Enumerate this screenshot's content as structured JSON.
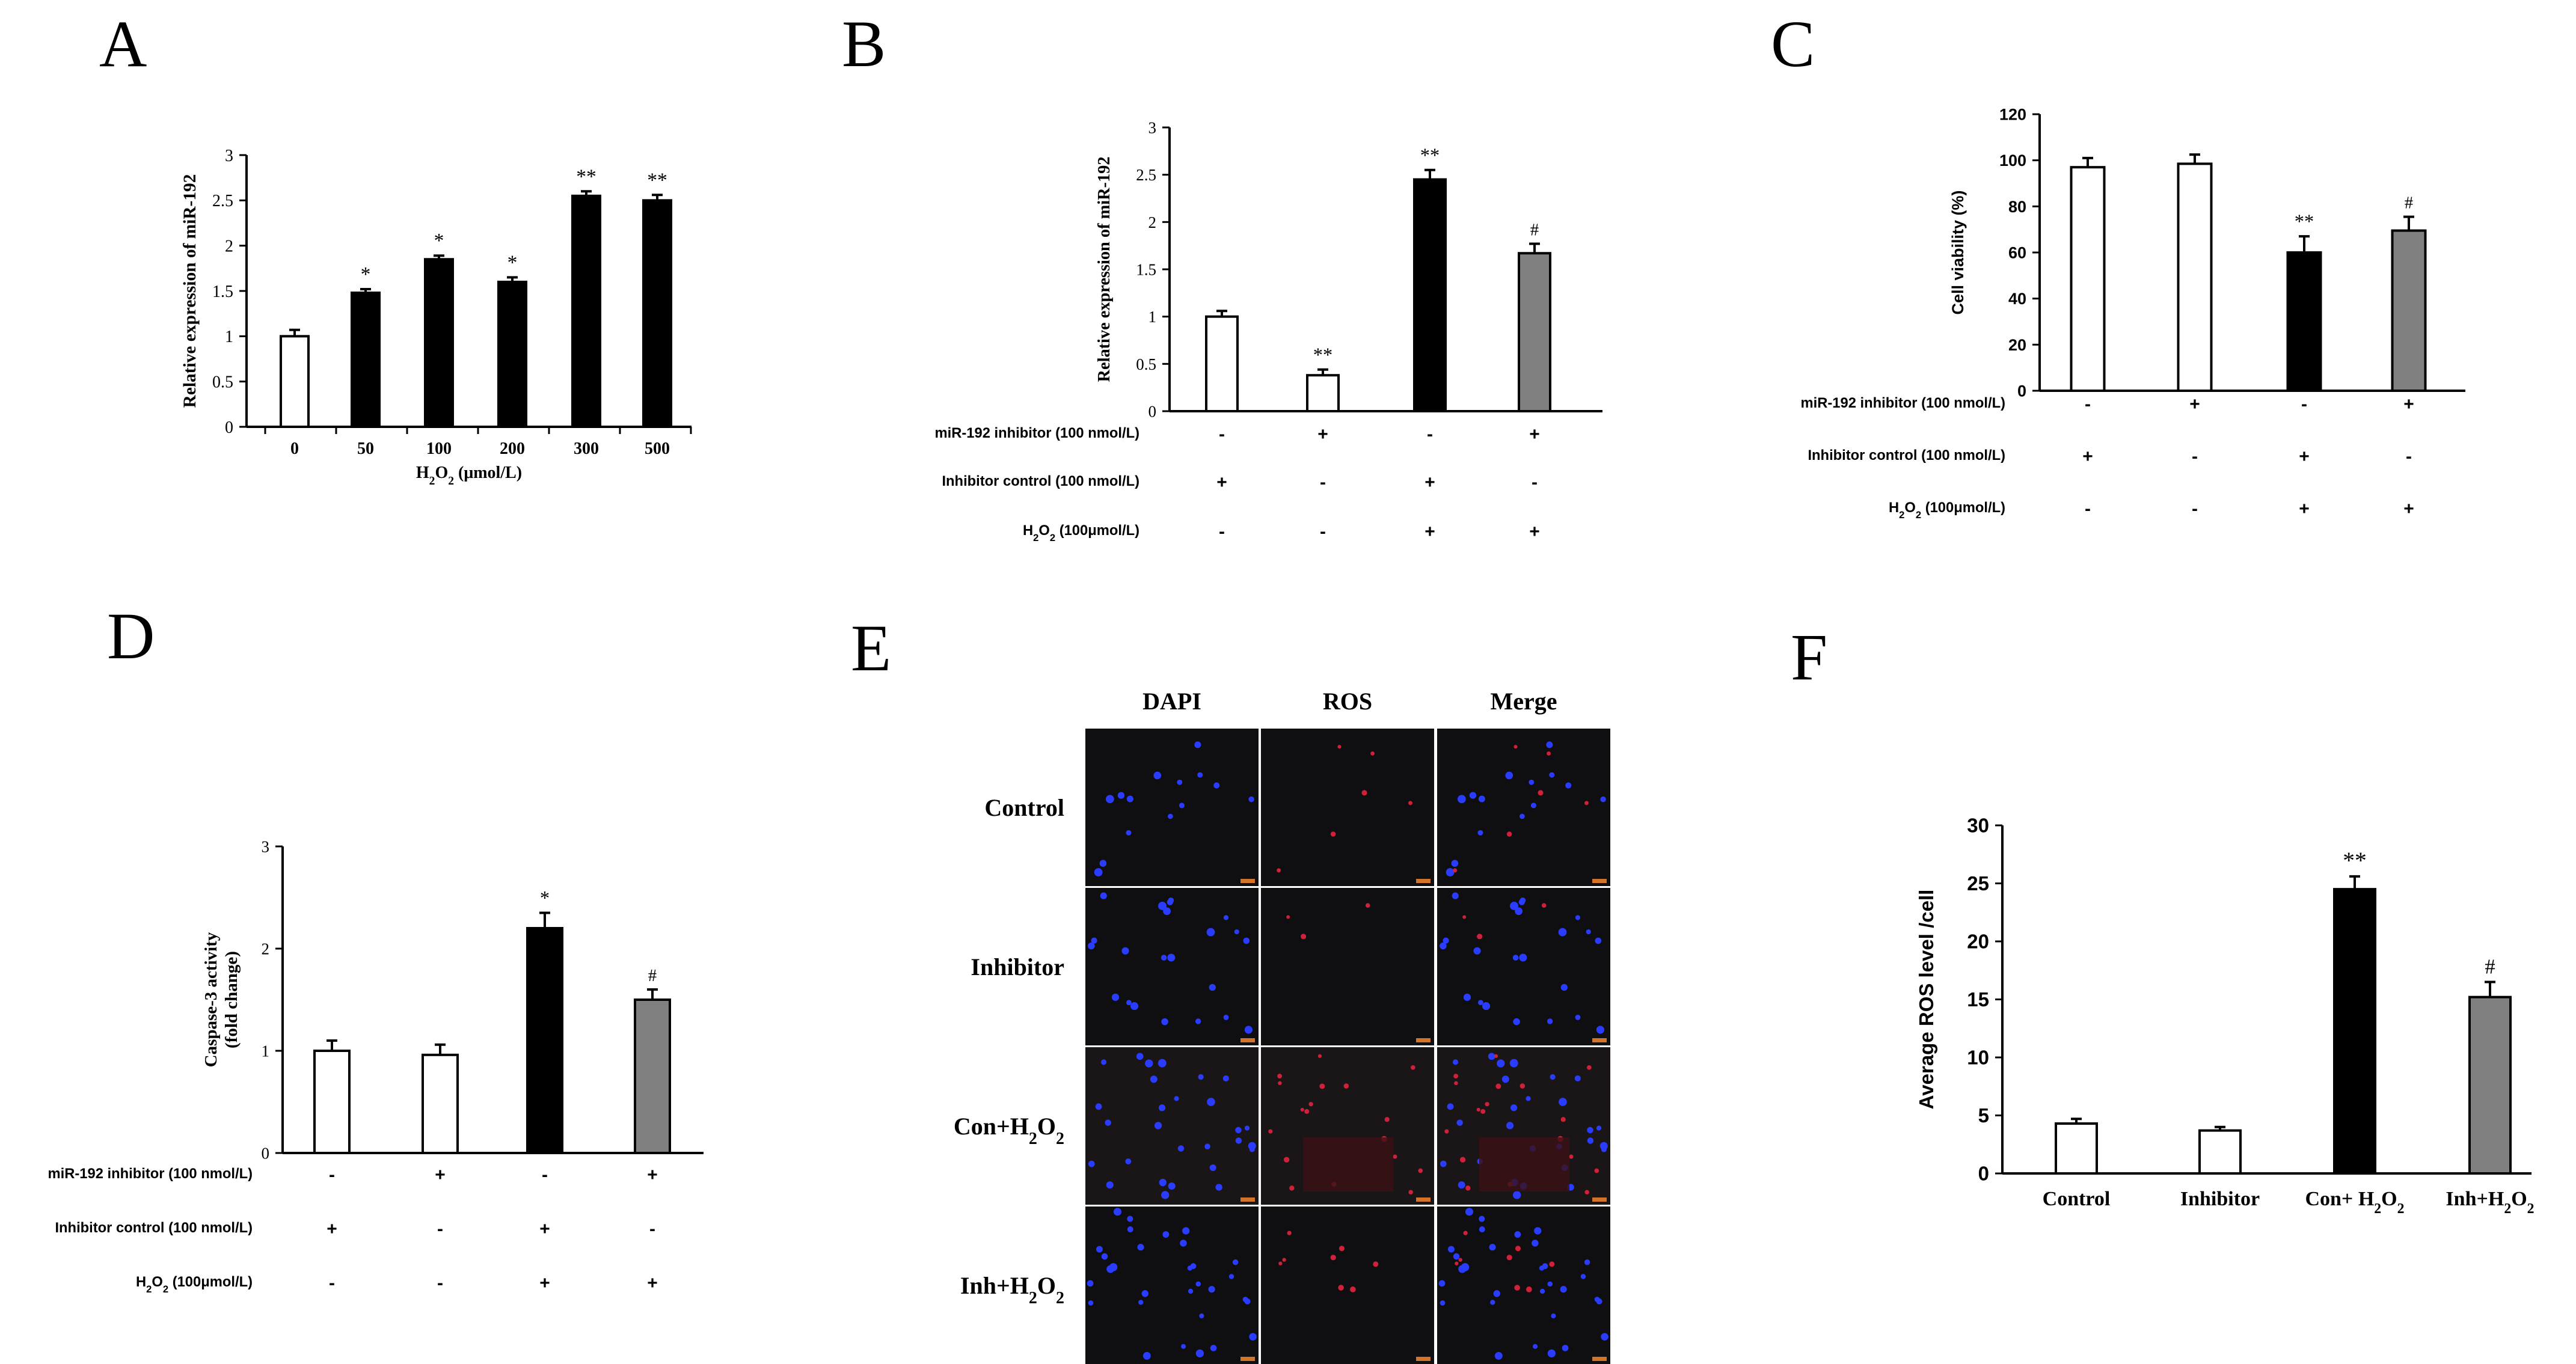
{
  "figure": {
    "panels": [
      {
        "id": "A",
        "letter": "A"
      },
      {
        "id": "B",
        "letter": "B"
      },
      {
        "id": "C",
        "letter": "C"
      },
      {
        "id": "D",
        "letter": "D"
      },
      {
        "id": "E",
        "letter": "E"
      },
      {
        "id": "F",
        "letter": "F"
      }
    ]
  },
  "chart_data": [
    {
      "panel": "A",
      "type": "bar",
      "title": "",
      "ylabel": "Relative expression of miR-192",
      "xlabel": "H2O2  (μmol/L)",
      "categories": [
        "0",
        "50",
        "100",
        "200",
        "300",
        "500"
      ],
      "values": [
        1.0,
        1.48,
        1.85,
        1.6,
        2.55,
        2.5
      ],
      "errors": [
        0.07,
        0.04,
        0.04,
        0.05,
        0.05,
        0.06
      ],
      "colors": [
        "#ffffff",
        "#000000",
        "#000000",
        "#000000",
        "#000000",
        "#000000"
      ],
      "annotations": [
        "",
        "*",
        "*",
        "*",
        "**",
        "**"
      ],
      "ylim": [
        0,
        3
      ],
      "yticks": [
        0,
        0.5,
        1,
        1.5,
        2,
        2.5,
        3
      ],
      "yticklabels": [
        "0",
        "0.5",
        "1",
        "1.5",
        "2",
        "2.5",
        "3"
      ]
    },
    {
      "panel": "B",
      "type": "bar",
      "ylabel": "Relative expression of miR-192",
      "values": [
        1.0,
        0.38,
        2.45,
        1.67
      ],
      "errors": [
        0.06,
        0.06,
        0.1,
        0.1
      ],
      "colors": [
        "#ffffff",
        "#ffffff",
        "#000000",
        "#808080"
      ],
      "annotations": [
        "",
        "**",
        "**",
        "#"
      ],
      "ylim": [
        0,
        3
      ],
      "yticks": [
        0,
        0.5,
        1,
        1.5,
        2,
        2.5,
        3
      ],
      "yticklabels": [
        "0",
        "0.5",
        "1",
        "1.5",
        "2",
        "2.5",
        "3"
      ],
      "treatment_rows": [
        {
          "label": "miR-192 inhibitor (100 nmol/L)",
          "signs": [
            "-",
            "+",
            "-",
            "+"
          ]
        },
        {
          "label": "Inhibitor control  (100 nmol/L)",
          "signs": [
            "+",
            "-",
            "+",
            "-"
          ]
        },
        {
          "label": "H2O2 (100μmol/L)",
          "signs": [
            "-",
            "-",
            "+",
            "+"
          ]
        }
      ]
    },
    {
      "panel": "C",
      "type": "bar",
      "ylabel": "Cell viability (%)",
      "values": [
        97,
        98.5,
        60,
        69.5
      ],
      "errors": [
        4,
        4,
        7,
        6
      ],
      "colors": [
        "#ffffff",
        "#ffffff",
        "#000000",
        "#808080"
      ],
      "annotations": [
        "",
        "",
        "**",
        "#"
      ],
      "ylim": [
        0,
        120
      ],
      "yticks": [
        0,
        20,
        40,
        60,
        80,
        100,
        120
      ],
      "yticklabels": [
        "0",
        "20",
        "40",
        "60",
        "80",
        "100",
        "120"
      ],
      "treatment_rows": [
        {
          "label": "miR-192 inhibitor (100 nmol/L)",
          "signs": [
            "-",
            "+",
            "-",
            "+"
          ]
        },
        {
          "label": "Inhibitor control  (100 nmol/L)",
          "signs": [
            "+",
            "-",
            "+",
            "-"
          ]
        },
        {
          "label": "H2O2 (100μmol/L)",
          "signs": [
            "-",
            "-",
            "+",
            "+"
          ]
        }
      ]
    },
    {
      "panel": "D",
      "type": "bar",
      "ylabel": "Caspase-3 activity",
      "ylabel2": "(fold change)",
      "values": [
        1.0,
        0.96,
        2.2,
        1.5
      ],
      "errors": [
        0.1,
        0.1,
        0.15,
        0.1
      ],
      "colors": [
        "#ffffff",
        "#ffffff",
        "#000000",
        "#808080"
      ],
      "annotations": [
        "",
        "",
        "*",
        "#"
      ],
      "ylim": [
        0,
        3
      ],
      "yticks": [
        0,
        1,
        2,
        3
      ],
      "yticklabels": [
        "0",
        "1",
        "2",
        "3"
      ],
      "treatment_rows": [
        {
          "label": "miR-192 inhibitor (100 nmol/L)",
          "signs": [
            "-",
            "+",
            "-",
            "+"
          ]
        },
        {
          "label": "Inhibitor control  (100 nmol/L)",
          "signs": [
            "+",
            "-",
            "+",
            "-"
          ]
        },
        {
          "label": "H2O2 (100μmol/L)",
          "signs": [
            "-",
            "-",
            "+",
            "+"
          ]
        }
      ]
    },
    {
      "panel": "F",
      "type": "bar",
      "ylabel": "Average ROS level /cell",
      "categories": [
        "Control",
        "Inhibitor",
        "Con+ H2O2",
        "Inh+H2O2"
      ],
      "values": [
        4.3,
        3.7,
        24.5,
        15.2
      ],
      "errors": [
        0.4,
        0.3,
        1.1,
        1.3
      ],
      "colors": [
        "#ffffff",
        "#ffffff",
        "#000000",
        "#808080"
      ],
      "annotations": [
        "",
        "",
        "**",
        "#"
      ],
      "ylim": [
        0,
        30
      ],
      "yticks": [
        0,
        5,
        10,
        15,
        20,
        25,
        30
      ],
      "yticklabels": [
        "0",
        "5",
        "10",
        "15",
        "20",
        "25",
        "30"
      ]
    }
  ],
  "microscopy": {
    "panel": "E",
    "columns": [
      "DAPI",
      "ROS",
      "Merge"
    ],
    "rows": [
      "Control",
      "Inhibitor",
      "Con+H2O2",
      "Inh+H2O2"
    ]
  }
}
